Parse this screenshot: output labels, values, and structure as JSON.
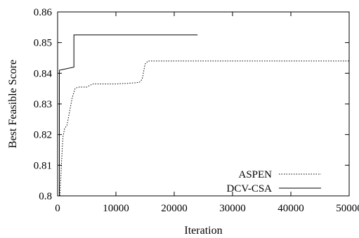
{
  "chart_data": {
    "type": "line",
    "xlabel": "Iteration",
    "ylabel": "Best Feasible Score",
    "xlim": [
      0,
      50000
    ],
    "ylim": [
      0.8,
      0.86
    ],
    "x_ticks": [
      0,
      10000,
      20000,
      30000,
      40000,
      50000
    ],
    "x_tick_labels": [
      "0",
      "10000",
      "20000",
      "30000",
      "40000",
      "50000"
    ],
    "y_ticks": [
      0.8,
      0.81,
      0.82,
      0.83,
      0.84,
      0.85,
      0.86
    ],
    "y_tick_labels": [
      "0.8",
      "0.81",
      "0.82",
      "0.83",
      "0.84",
      "0.85",
      "0.86"
    ],
    "grid": false,
    "legend_position": "bottom-right",
    "series": [
      {
        "name": "ASPEN",
        "style": "dotted",
        "color": "#000000",
        "points": [
          [
            0,
            0.8
          ],
          [
            400,
            0.8
          ],
          [
            700,
            0.812
          ],
          [
            900,
            0.819
          ],
          [
            1200,
            0.822
          ],
          [
            1600,
            0.823
          ],
          [
            2000,
            0.827
          ],
          [
            2500,
            0.832
          ],
          [
            3000,
            0.835
          ],
          [
            3500,
            0.8355
          ],
          [
            5000,
            0.8355
          ],
          [
            5500,
            0.836
          ],
          [
            6000,
            0.8365
          ],
          [
            10000,
            0.8365
          ],
          [
            12000,
            0.8367
          ],
          [
            14000,
            0.837
          ],
          [
            14500,
            0.838
          ],
          [
            15000,
            0.843
          ],
          [
            15500,
            0.844
          ],
          [
            50000,
            0.844
          ]
        ]
      },
      {
        "name": "DCV-CSA",
        "style": "solid",
        "color": "#000000",
        "points": [
          [
            0,
            0.8
          ],
          [
            300,
            0.8
          ],
          [
            300,
            0.841
          ],
          [
            2800,
            0.842
          ],
          [
            2800,
            0.8525
          ],
          [
            24000,
            0.8525
          ]
        ]
      }
    ]
  }
}
